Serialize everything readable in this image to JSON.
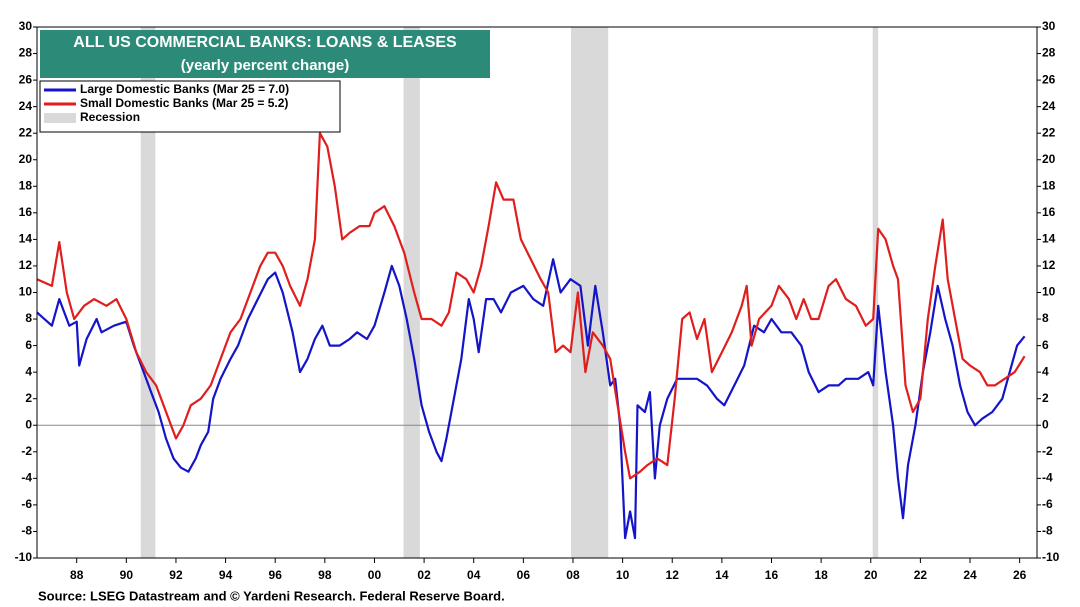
{
  "chart_data": {
    "type": "line",
    "title": "ALL US COMMERCIAL BANKS: LOANS & LEASES",
    "subtitle": "(yearly percent change)",
    "source": "Source: LSEG Datastream and © Yardeni Research. Federal Reserve Board.",
    "xlim": [
      1986.4,
      2026.7
    ],
    "xticks": [
      {
        "value": 1988,
        "label": "88"
      },
      {
        "value": 1990,
        "label": "90"
      },
      {
        "value": 1992,
        "label": "92"
      },
      {
        "value": 1994,
        "label": "94"
      },
      {
        "value": 1996,
        "label": "96"
      },
      {
        "value": 1998,
        "label": "98"
      },
      {
        "value": 2000,
        "label": "00"
      },
      {
        "value": 2002,
        "label": "02"
      },
      {
        "value": 2004,
        "label": "04"
      },
      {
        "value": 2006,
        "label": "06"
      },
      {
        "value": 2008,
        "label": "08"
      },
      {
        "value": 2010,
        "label": "10"
      },
      {
        "value": 2012,
        "label": "12"
      },
      {
        "value": 2014,
        "label": "14"
      },
      {
        "value": 2016,
        "label": "16"
      },
      {
        "value": 2018,
        "label": "18"
      },
      {
        "value": 2020,
        "label": "20"
      },
      {
        "value": 2022,
        "label": "22"
      },
      {
        "value": 2024,
        "label": "24"
      },
      {
        "value": 2026,
        "label": "26"
      }
    ],
    "ylim": [
      -10,
      30
    ],
    "yticks": [
      -10,
      -8,
      -6,
      -4,
      -2,
      0,
      2,
      4,
      6,
      8,
      10,
      12,
      14,
      16,
      18,
      20,
      22,
      24,
      26,
      28,
      30
    ],
    "y2lim": [
      -10,
      30
    ],
    "y2ticks": [
      -10,
      -8,
      -6,
      -4,
      -2,
      0,
      2,
      4,
      6,
      8,
      10,
      12,
      14,
      16,
      18,
      20,
      22,
      24,
      26,
      28,
      30
    ],
    "recession": {
      "name": "Recession",
      "color": "#d9d9d9",
      "periods": [
        {
          "start": 1990.58,
          "end": 1991.17
        },
        {
          "start": 2001.17,
          "end": 2001.83
        },
        {
          "start": 2007.92,
          "end": 2009.42
        },
        {
          "start": 2020.08,
          "end": 2020.3
        }
      ]
    },
    "series": [
      {
        "name": "Large Domestic Banks (Mar 25 = 7.0)",
        "color": "#1414c8",
        "x": [
          1986.4,
          1987,
          1987.3,
          1987.7,
          1988,
          1988.1,
          1988.4,
          1988.8,
          1989,
          1989.5,
          1990,
          1990.3,
          1990.7,
          1991,
          1991.3,
          1991.6,
          1991.9,
          1992.2,
          1992.5,
          1992.8,
          1993,
          1993.3,
          1993.5,
          1993.8,
          1994.2,
          1994.5,
          1994.9,
          1995.3,
          1995.7,
          1996,
          1996.3,
          1996.7,
          1997,
          1997.3,
          1997.6,
          1997.9,
          1998.2,
          1998.6,
          1999,
          1999.3,
          1999.7,
          2000,
          2000.4,
          2000.7,
          2001,
          2001.3,
          2001.6,
          2001.9,
          2002.2,
          2002.5,
          2002.7,
          2002.9,
          2003.2,
          2003.5,
          2003.8,
          2004,
          2004.2,
          2004.5,
          2004.8,
          2005.1,
          2005.5,
          2006,
          2006.4,
          2006.8,
          2007.2,
          2007.5,
          2007.9,
          2008.3,
          2008.6,
          2008.9,
          2009.2,
          2009.5,
          2009.7,
          2009.9,
          2010.1,
          2010.3,
          2010.5,
          2010.6,
          2010.9,
          2011.1,
          2011.3,
          2011.5,
          2011.8,
          2012.2,
          2012.6,
          2013,
          2013.4,
          2013.8,
          2014.1,
          2014.5,
          2014.9,
          2015.3,
          2015.7,
          2016,
          2016.4,
          2016.8,
          2017.2,
          2017.5,
          2017.9,
          2018.3,
          2018.7,
          2019,
          2019.5,
          2019.9,
          2020.1,
          2020.3,
          2020.6,
          2020.9,
          2021.1,
          2021.3,
          2021.5,
          2021.8,
          2022.1,
          2022.4,
          2022.7,
          2023,
          2023.3,
          2023.6,
          2023.9,
          2024.2,
          2024.5,
          2024.9,
          2025.3,
          2025.6,
          2025.9,
          2026.2
        ],
        "values": [
          8.5,
          7.5,
          9.5,
          7.5,
          7.8,
          4.5,
          6.5,
          8,
          7,
          7.5,
          7.8,
          6,
          4,
          2.5,
          1,
          -1,
          -2.5,
          -3.2,
          -3.5,
          -2.5,
          -1.5,
          -0.5,
          2,
          3.5,
          5,
          6,
          8,
          9.5,
          11,
          11.5,
          10,
          7,
          4,
          5,
          6.5,
          7.5,
          6,
          6,
          6.5,
          7,
          6.5,
          7.5,
          10,
          12,
          10.5,
          8,
          5,
          1.5,
          -0.5,
          -2,
          -2.7,
          -1,
          2,
          5,
          9.5,
          8,
          5.5,
          9.5,
          9.5,
          8.5,
          10,
          10.5,
          9.5,
          9,
          12.5,
          10,
          11,
          10.5,
          6,
          10.5,
          7,
          3,
          3.5,
          0,
          -8.5,
          -6.5,
          -8.5,
          1.5,
          1,
          2.5,
          -4,
          0,
          2,
          3.5,
          3.5,
          3.5,
          3,
          2,
          1.5,
          3,
          4.5,
          7.5,
          7,
          8,
          7,
          7,
          6,
          4,
          2.5,
          3,
          3,
          3.5,
          3.5,
          4,
          3,
          9,
          4,
          0,
          -4,
          -7,
          -3,
          0,
          4,
          7,
          10.5,
          8,
          6,
          3,
          1,
          0,
          0.5,
          1,
          2,
          4,
          6,
          6.7
        ]
      },
      {
        "name": "Small Domestic Banks (Mar 25 = 5.2)",
        "color": "#e01e1e",
        "x": [
          1986.4,
          1987,
          1987.3,
          1987.6,
          1987.9,
          1988.3,
          1988.7,
          1989.2,
          1989.6,
          1990,
          1990.4,
          1990.8,
          1991.2,
          1991.5,
          1991.8,
          1992,
          1992.3,
          1992.6,
          1993,
          1993.4,
          1993.8,
          1994.2,
          1994.6,
          1995,
          1995.4,
          1995.7,
          1996,
          1996.3,
          1996.6,
          1997,
          1997.3,
          1997.6,
          1997.8,
          1998.1,
          1998.4,
          1998.7,
          1999,
          1999.4,
          1999.8,
          2000,
          2000.4,
          2000.8,
          2001.2,
          2001.6,
          2001.9,
          2002.3,
          2002.7,
          2003,
          2003.3,
          2003.7,
          2004,
          2004.3,
          2004.6,
          2004.9,
          2005.2,
          2005.6,
          2005.9,
          2006.3,
          2006.7,
          2007,
          2007.3,
          2007.6,
          2007.9,
          2008.2,
          2008.5,
          2008.8,
          2009.2,
          2009.5,
          2009.8,
          2010.1,
          2010.3,
          2010.7,
          2011,
          2011.4,
          2011.8,
          2012.1,
          2012.4,
          2012.7,
          2013,
          2013.3,
          2013.6,
          2014,
          2014.4,
          2014.8,
          2015,
          2015.2,
          2015.5,
          2016,
          2016.3,
          2016.7,
          2017,
          2017.3,
          2017.6,
          2017.9,
          2018.3,
          2018.6,
          2019,
          2019.4,
          2019.8,
          2020.1,
          2020.3,
          2020.6,
          2020.9,
          2021.1,
          2021.4,
          2021.7,
          2022,
          2022.3,
          2022.6,
          2022.9,
          2023.1,
          2023.4,
          2023.7,
          2024,
          2024.4,
          2024.7,
          2025,
          2025.4,
          2025.8,
          2026.2
        ],
        "values": [
          11,
          10.5,
          13.8,
          10,
          8,
          9,
          9.5,
          9,
          9.5,
          8,
          5.5,
          4,
          3,
          1.5,
          0,
          -1,
          0,
          1.5,
          2,
          3,
          5,
          7,
          8,
          10,
          12,
          13,
          13,
          12,
          10.5,
          9,
          11,
          14,
          22,
          21,
          18,
          14,
          14.5,
          15,
          15,
          16,
          16.5,
          15,
          13,
          10,
          8,
          8,
          7.5,
          8.5,
          11.5,
          11,
          10,
          12,
          15,
          18.3,
          17,
          17,
          14,
          12.5,
          11,
          10,
          5.5,
          6,
          5.5,
          10,
          4,
          7,
          6,
          5,
          1.5,
          -2,
          -4,
          -3.5,
          -3,
          -2.5,
          -3,
          2,
          8,
          8.5,
          6.5,
          8,
          4,
          5.5,
          7,
          9,
          10.5,
          6,
          8,
          9,
          10.5,
          9.5,
          8,
          9.5,
          8,
          8,
          10.5,
          11,
          9.5,
          9,
          7.5,
          8,
          14.8,
          14,
          12,
          11,
          3,
          1,
          2,
          8,
          12,
          15.5,
          11,
          8,
          5,
          4.5,
          4,
          3,
          3,
          3.5,
          4,
          5.2
        ]
      }
    ],
    "grid": false
  }
}
